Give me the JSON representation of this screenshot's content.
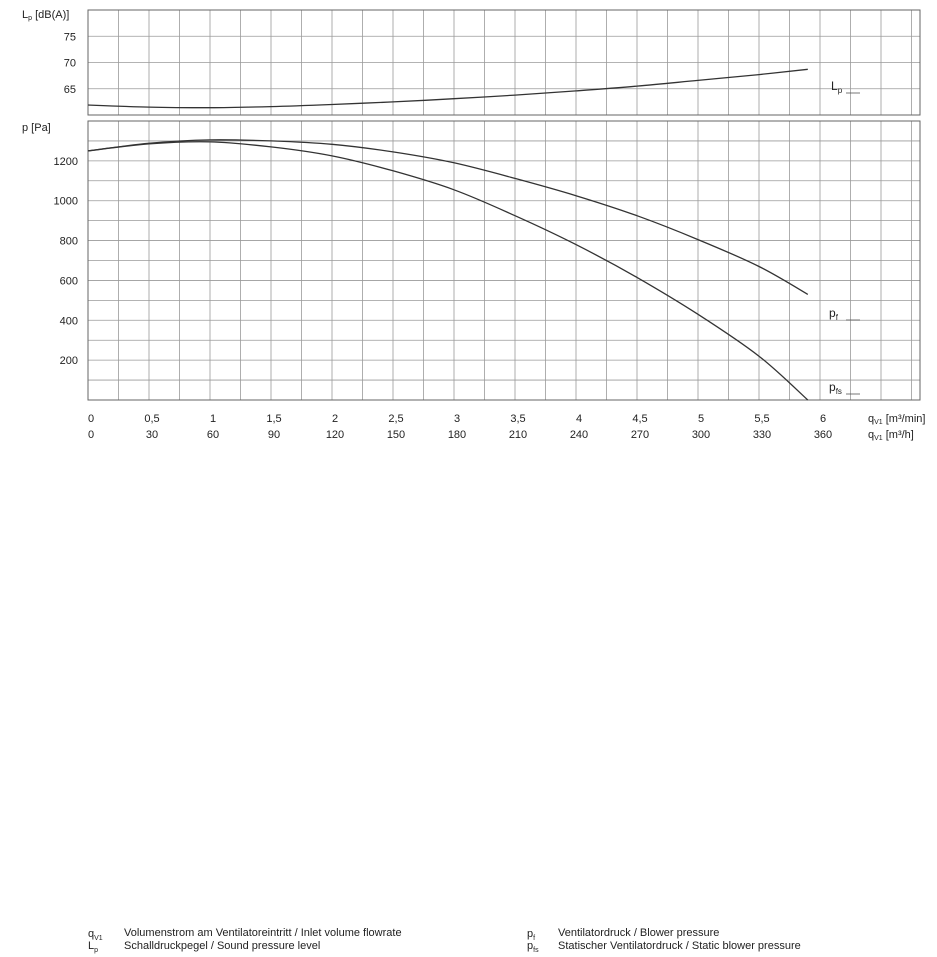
{
  "chart_data": [
    {
      "type": "line",
      "panel": "sound",
      "ylabel_main": "L",
      "ylabel_sub": "p",
      "ylabel_unit": " [dB(A)]",
      "y_ticks": [
        65,
        70,
        75
      ],
      "ylim": [
        60,
        80
      ],
      "grid": true,
      "series": [
        {
          "label_main": "L",
          "label_sub": "p",
          "x": [
            0,
            0.5,
            1,
            1.5,
            2,
            2.5,
            3,
            3.5,
            4,
            4.5,
            5,
            5.5,
            5.9
          ],
          "values": [
            61.9,
            61.5,
            61.4,
            61.6,
            62.0,
            62.5,
            63.1,
            63.8,
            64.6,
            65.5,
            66.6,
            67.7,
            68.7
          ]
        }
      ]
    },
    {
      "type": "line",
      "panel": "pressure",
      "ylabel": "p [Pa]",
      "y_ticks": [
        200,
        400,
        600,
        800,
        1000,
        1200
      ],
      "ylim": [
        0,
        1400
      ],
      "x_ticks": [
        "0",
        "0,5",
        "1",
        "1,5",
        "2",
        "2,5",
        "3",
        "3,5",
        "4",
        "4,5",
        "5",
        "5,5",
        "6"
      ],
      "x_ticks_secondary": [
        "0",
        "30",
        "60",
        "90",
        "120",
        "150",
        "180",
        "210",
        "240",
        "270",
        "300",
        "330",
        "360"
      ],
      "xlim": [
        0,
        7
      ],
      "grid": true,
      "series": [
        {
          "label_main": "p",
          "label_sub": "f",
          "x": [
            0,
            0.5,
            1,
            1.5,
            2,
            2.5,
            3,
            3.5,
            4,
            4.5,
            5,
            5.5,
            5.9
          ],
          "values": [
            1250,
            1288,
            1305,
            1300,
            1283,
            1245,
            1190,
            1112,
            1025,
            925,
            805,
            670,
            530
          ]
        },
        {
          "label_main": "p",
          "label_sub": "fs",
          "x": [
            0,
            0.5,
            1,
            1.5,
            2,
            2.5,
            3,
            3.5,
            4,
            4.5,
            5,
            5.5,
            5.9
          ],
          "values": [
            1250,
            1285,
            1295,
            1270,
            1225,
            1150,
            1055,
            925,
            780,
            615,
            430,
            220,
            0
          ]
        }
      ]
    }
  ],
  "x_unit_primary": {
    "main": "q",
    "sub": "V1",
    "unit": " [m³/min]"
  },
  "x_unit_secondary": {
    "main": "q",
    "sub": "V1",
    "unit": " [m³/h]"
  },
  "legend": [
    {
      "sym_main": "q",
      "sym_sub": "V1",
      "text": "Volumenstrom am Ventilatoreintritt / Inlet volume flowrate"
    },
    {
      "sym_main": "L",
      "sym_sub": "p",
      "text": "Schalldruckpegel / Sound pressure level"
    },
    {
      "sym_main": "p",
      "sym_sub": "f",
      "text": "Ventilatordruck / Blower pressure"
    },
    {
      "sym_main": "p",
      "sym_sub": "fs",
      "text": "Statischer Ventilatordruck / Static blower pressure"
    }
  ]
}
